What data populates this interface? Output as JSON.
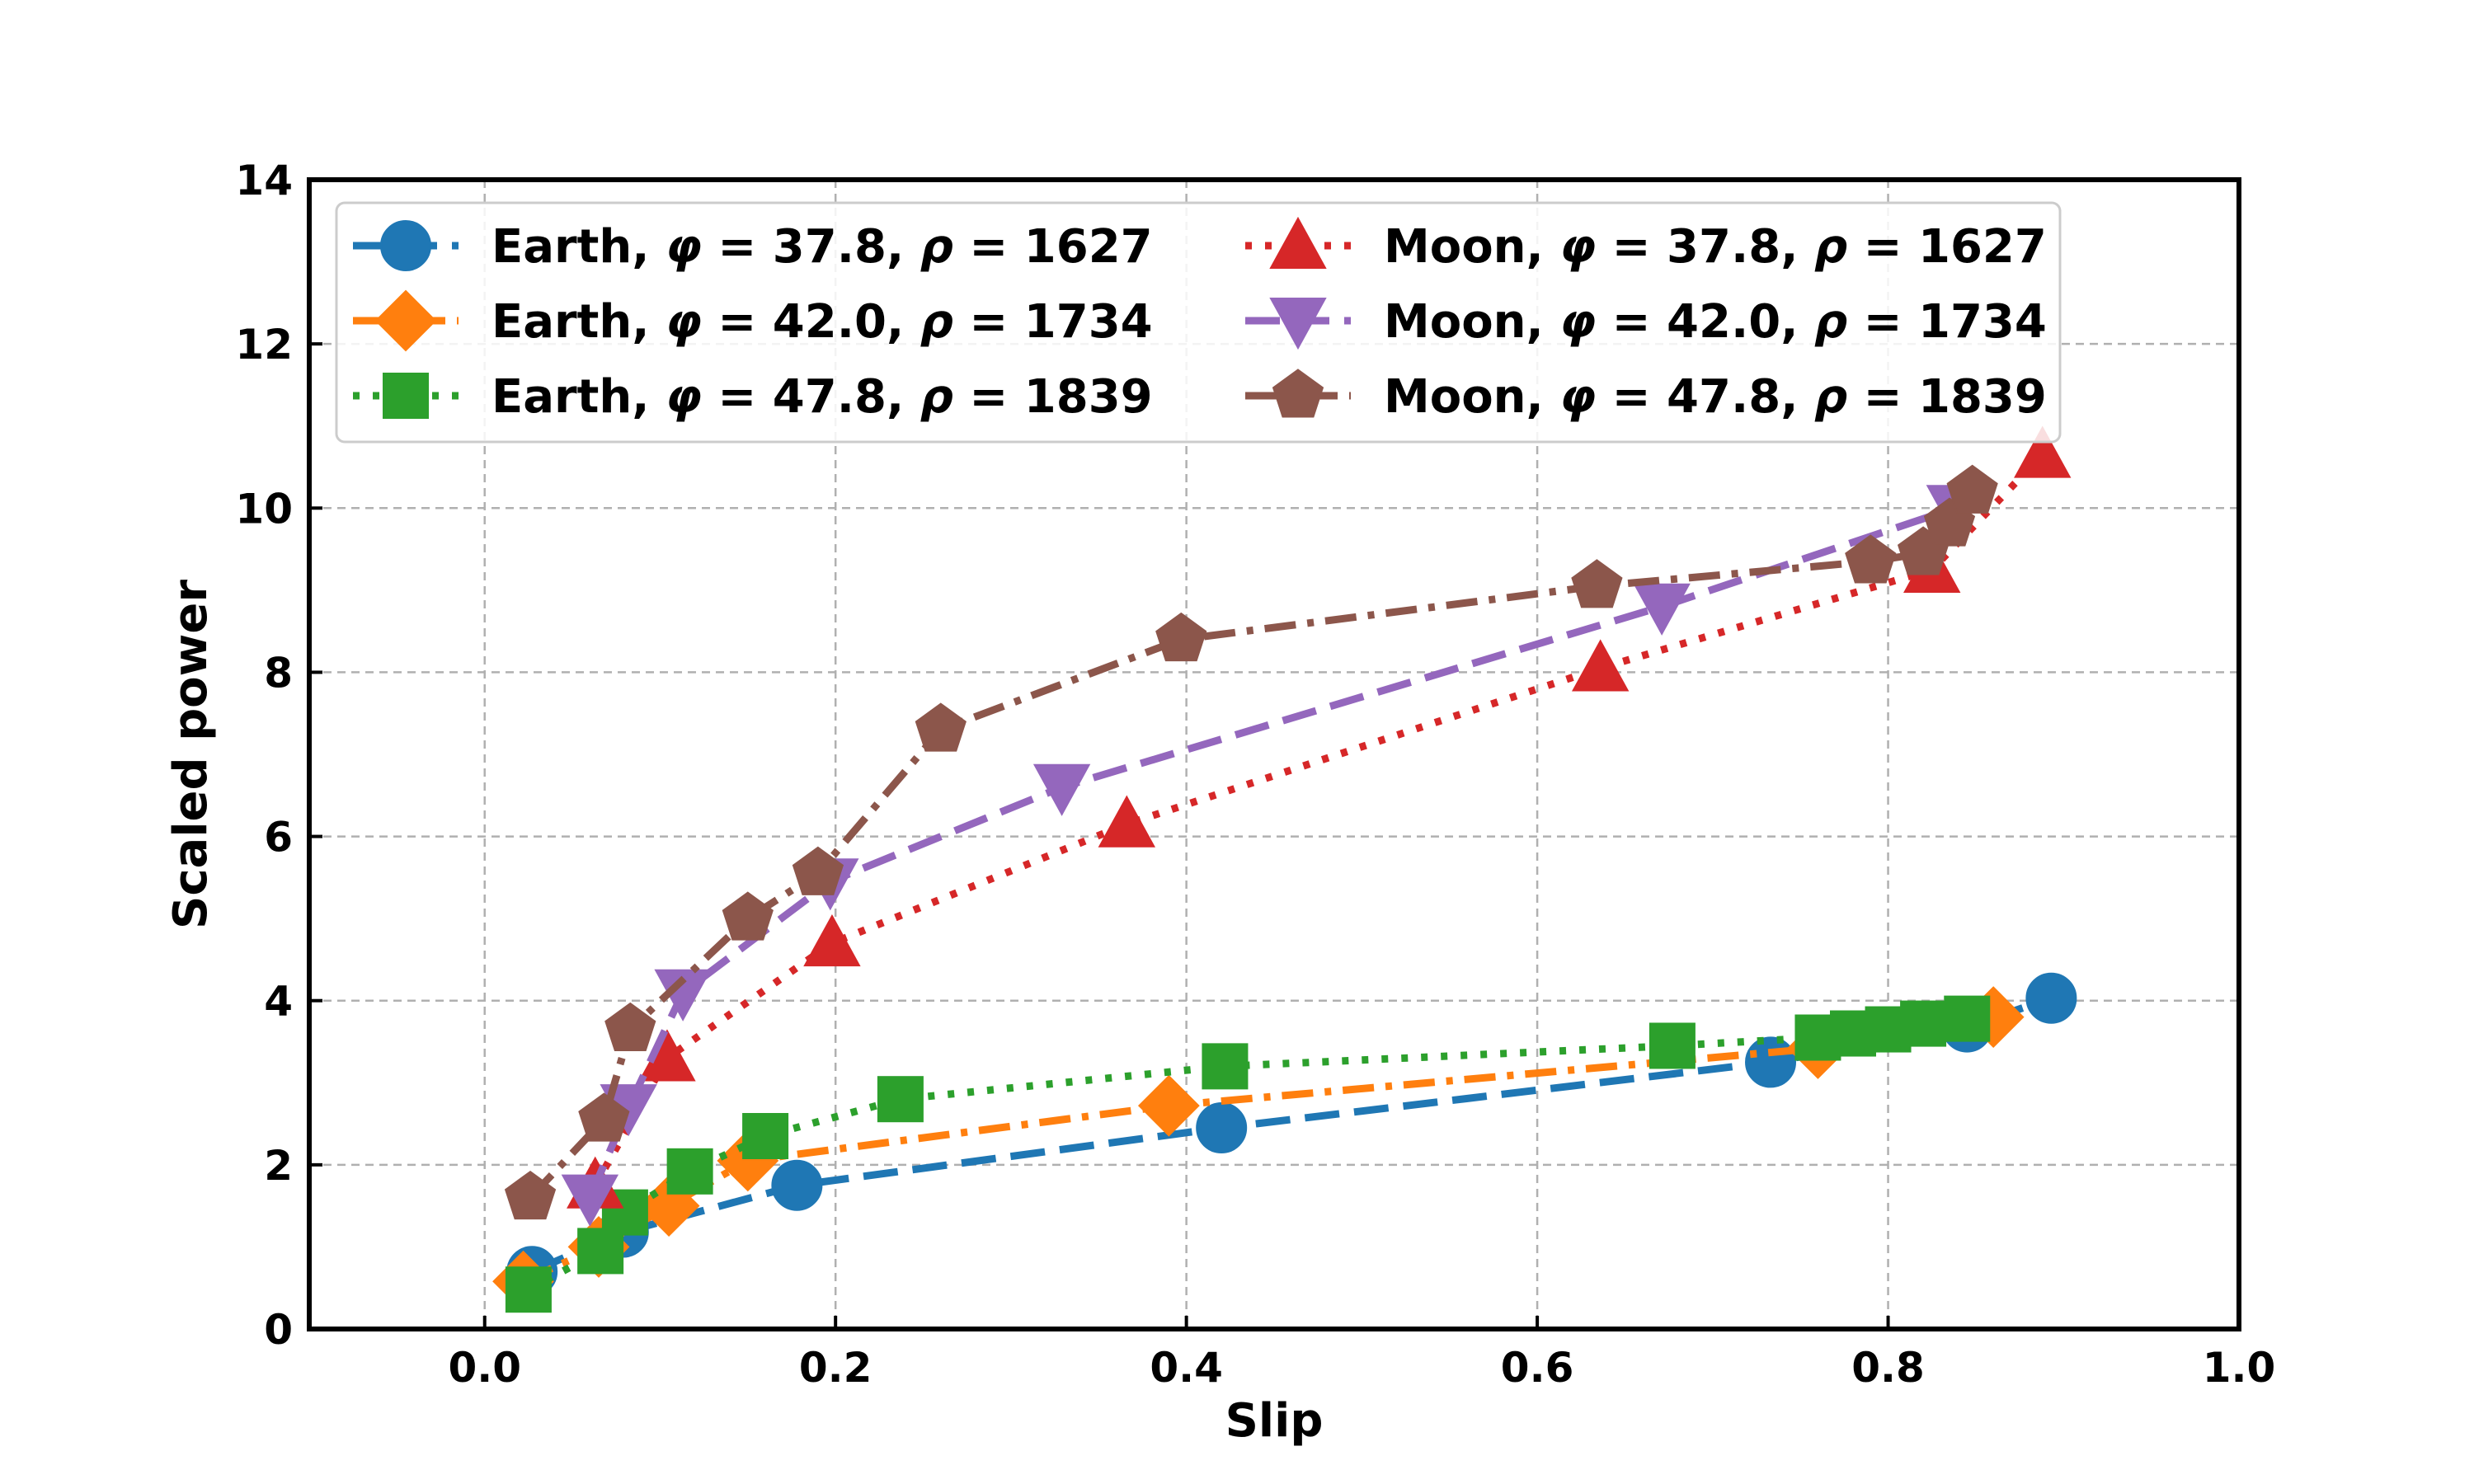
{
  "chart_data": {
    "type": "line",
    "title": "",
    "xlabel": "Slip",
    "ylabel": "Scaled power",
    "xlim": [
      -0.1,
      1.0
    ],
    "ylim": [
      0,
      14
    ],
    "xticks": [
      0.0,
      0.2,
      0.4,
      0.6,
      0.8,
      1.0
    ],
    "xtick_labels": [
      "0.0",
      "0.2",
      "0.4",
      "0.6",
      "0.8",
      "1.0"
    ],
    "yticks": [
      0,
      2,
      4,
      6,
      8,
      10,
      12,
      14
    ],
    "ytick_labels": [
      "0",
      "2",
      "4",
      "6",
      "8",
      "10",
      "12",
      "14"
    ],
    "grid": true,
    "legend_position": "top",
    "series": [
      {
        "name": "Earth, φ = 37.8, ρ = 1627",
        "label_prefix": "Earth, ",
        "phi": "37.8",
        "rho": "1627",
        "color": "#1f77b4",
        "marker": "circle",
        "line_style": "dashed",
        "x": [
          0.027,
          0.079,
          0.178,
          0.42,
          0.733,
          0.845,
          0.893
        ],
        "y": [
          0.7,
          1.18,
          1.75,
          2.45,
          3.25,
          3.68,
          4.03
        ]
      },
      {
        "name": "Earth, φ = 42.0, ρ = 1734",
        "label_prefix": "Earth, ",
        "phi": "42.0",
        "rho": "1734",
        "color": "#ff7f0e",
        "marker": "diamond",
        "line_style": "dashdot",
        "x": [
          0.022,
          0.065,
          0.105,
          0.15,
          0.39,
          0.76,
          0.86
        ],
        "y": [
          0.58,
          1.0,
          1.5,
          2.05,
          2.72,
          3.42,
          3.8
        ]
      },
      {
        "name": "Earth, φ = 47.8, ρ = 1839",
        "label_prefix": "Earth, ",
        "phi": "47.8",
        "rho": "1839",
        "color": "#2ca02c",
        "marker": "square",
        "line_style": "dotted",
        "x": [
          0.025,
          0.066,
          0.08,
          0.117,
          0.16,
          0.237,
          0.422,
          0.677,
          0.76,
          0.78,
          0.8,
          0.82,
          0.845
        ],
        "y": [
          0.48,
          0.95,
          1.42,
          1.92,
          2.35,
          2.8,
          3.2,
          3.45,
          3.55,
          3.6,
          3.65,
          3.72,
          3.78
        ]
      },
      {
        "name": "Moon, φ = 37.8, ρ = 1627",
        "label_prefix": "Moon, ",
        "phi": "37.8",
        "rho": "1627",
        "color": "#d62728",
        "marker": "triangle-up",
        "line_style": "dotted",
        "x": [
          0.063,
          0.104,
          0.198,
          0.366,
          0.636,
          0.825,
          0.888
        ],
        "y": [
          1.75,
          3.3,
          4.7,
          6.15,
          8.05,
          9.25,
          10.65
        ]
      },
      {
        "name": "Moon, φ = 42.0, ρ = 1734",
        "label_prefix": "Moon, ",
        "phi": "42.0",
        "rho": "1734",
        "color": "#9467bd",
        "marker": "triangle-down",
        "line_style": "dashed",
        "x": [
          0.06,
          0.082,
          0.113,
          0.197,
          0.329,
          0.671,
          0.838
        ],
        "y": [
          1.6,
          2.7,
          4.1,
          5.45,
          6.6,
          8.8,
          10.0
        ]
      },
      {
        "name": "Moon, φ = 47.8, ρ = 1839",
        "label_prefix": "Moon, ",
        "phi": "47.8",
        "rho": "1839",
        "color": "#8c564b",
        "marker": "pentagon",
        "line_style": "dashdot",
        "x": [
          0.026,
          0.068,
          0.083,
          0.15,
          0.19,
          0.26,
          0.397,
          0.634,
          0.79,
          0.82,
          0.835,
          0.848
        ],
        "y": [
          1.6,
          2.55,
          3.65,
          5.0,
          5.55,
          7.3,
          8.4,
          9.05,
          9.35,
          9.45,
          9.8,
          10.2
        ]
      }
    ]
  }
}
